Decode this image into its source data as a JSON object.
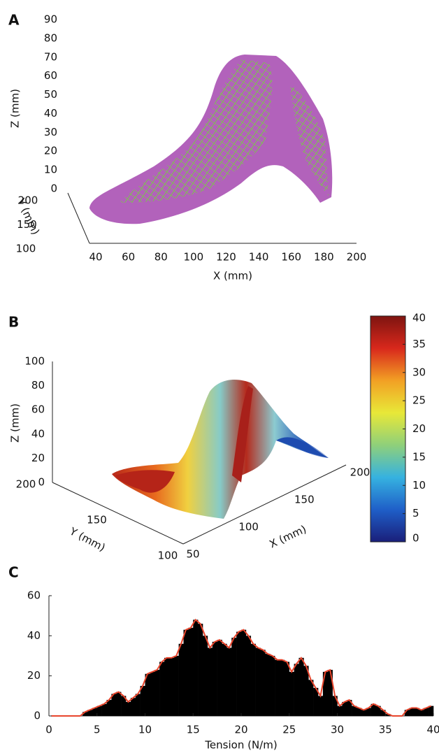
{
  "chart_data": [
    {
      "type": "mesh3d",
      "panel": "A",
      "xlabel": "X (mm)",
      "ylabel": "Y (mm)",
      "zlabel": "Z (mm)",
      "xlim": [
        40,
        200
      ],
      "xticks": [
        40,
        60,
        80,
        100,
        120,
        140,
        160,
        180,
        200
      ],
      "ylim": [
        100,
        200
      ],
      "yticks": [
        100,
        150,
        200
      ],
      "zlim": [
        0,
        90
      ],
      "zticks": [
        0,
        10,
        20,
        30,
        40,
        50,
        60,
        70,
        80,
        90
      ],
      "colors": [
        "#b262bb",
        "#7dc24e"
      ]
    },
    {
      "type": "surface3d",
      "panel": "B",
      "xlabel": "X (mm)",
      "ylabel": "Y (mm)",
      "zlabel": "Z (mm)",
      "xlim": [
        50,
        200
      ],
      "xticks": [
        50,
        100,
        150,
        200
      ],
      "ylim": [
        100,
        200
      ],
      "yticks": [
        100,
        150,
        200
      ],
      "zlim": [
        0,
        100
      ],
      "zticks": [
        0,
        20,
        40,
        60,
        80,
        100
      ],
      "clim": [
        0,
        40
      ],
      "cticks": [
        0,
        5,
        10,
        15,
        20,
        25,
        30,
        35,
        40
      ],
      "colormap": [
        "#1a1f7a",
        "#1f5fc8",
        "#36b2e0",
        "#8fd07a",
        "#e8e838",
        "#f2a024",
        "#d8281c",
        "#7e1410"
      ]
    },
    {
      "type": "histogram",
      "panel": "C",
      "xlabel": "Tension (N/m)",
      "bins": [
        0,
        0.5,
        1,
        1.5,
        2,
        2.5,
        3,
        3.5,
        4,
        4.5,
        5,
        5.5,
        6,
        6.5,
        7,
        7.5,
        8,
        8.5,
        9,
        9.5,
        10,
        10.5,
        11,
        11.5,
        12,
        12.5,
        13,
        13.5,
        14,
        14.5,
        15,
        15.5,
        16,
        16.5,
        17,
        17.5,
        18,
        18.5,
        19,
        19.5,
        20,
        20.5,
        21,
        21.5,
        22,
        22.5,
        23,
        23.5,
        24,
        24.5,
        25,
        25.5,
        26,
        26.5,
        27,
        27.5,
        28,
        28.5,
        29,
        29.5,
        30,
        30.5,
        31,
        31.5,
        32,
        32.5,
        33,
        33.5,
        34,
        34.5,
        35,
        35.5,
        36,
        36.5,
        37,
        37.5,
        38,
        38.5,
        39,
        39.5,
        40
      ],
      "counts": [
        0,
        0,
        0,
        0,
        0,
        0,
        0,
        2,
        3,
        4,
        5,
        6,
        8,
        11,
        12,
        10,
        7,
        9,
        11,
        15,
        21,
        22,
        23,
        27,
        29,
        29,
        30,
        36,
        43,
        44,
        48,
        46,
        40,
        34,
        37,
        38,
        36,
        34,
        39,
        42,
        43,
        40,
        36,
        34,
        33,
        31,
        30,
        28,
        28,
        27,
        22,
        26,
        29,
        25,
        18,
        14,
        10,
        22,
        23,
        10,
        5,
        7,
        8,
        5,
        4,
        3,
        4,
        6,
        5,
        3,
        1,
        0,
        0,
        0,
        3,
        4,
        4,
        3,
        4,
        5
      ],
      "color": "#000000",
      "line_color": "#e8452c",
      "xlim": [
        0,
        40
      ],
      "xticks": [
        0,
        5,
        10,
        15,
        20,
        25,
        30,
        35,
        40
      ],
      "ylim": [
        0,
        60
      ],
      "yticks": [
        0,
        20,
        40,
        60
      ]
    }
  ]
}
